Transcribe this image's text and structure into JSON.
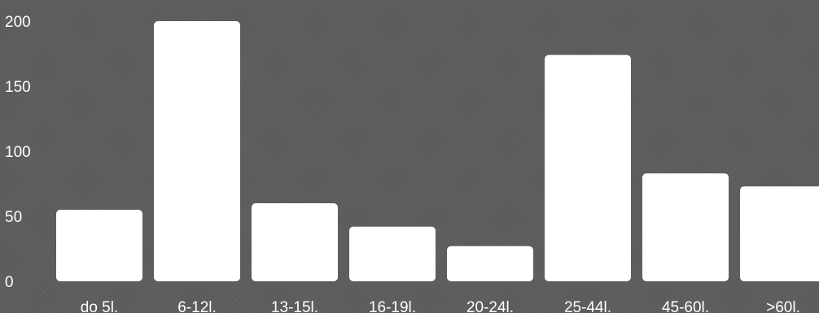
{
  "chart_data": {
    "type": "bar",
    "categories": [
      "do 5l.",
      "6-12l.",
      "13-15l.",
      "16-19l.",
      "20-24l.",
      "25-44l.",
      "45-60l.",
      ">60l."
    ],
    "values": [
      55,
      200,
      60,
      42,
      27,
      174,
      83,
      73
    ],
    "title": "",
    "xlabel": "",
    "ylabel": "",
    "ylim": [
      0,
      200
    ],
    "yticks": [
      0,
      50,
      100,
      150,
      200
    ],
    "grid": false,
    "bar_color": "#ffffff",
    "background_color": "#5b5b5b"
  }
}
